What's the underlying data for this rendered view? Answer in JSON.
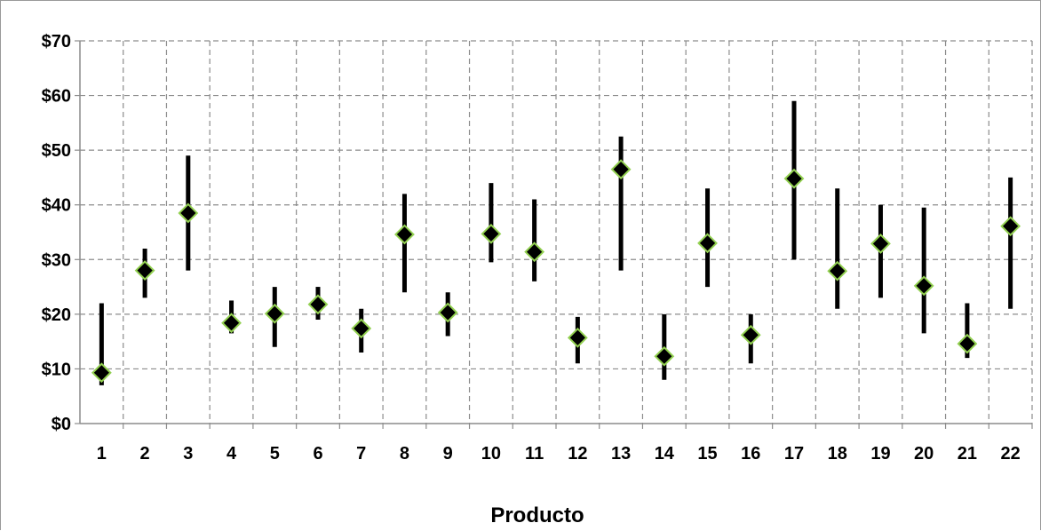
{
  "chart_data": {
    "type": "scatter",
    "title": "",
    "xlabel": "Producto",
    "ylabel": "",
    "ylim": [
      0,
      70
    ],
    "yticks": [
      0,
      10,
      20,
      30,
      40,
      50,
      60,
      70
    ],
    "ytick_labels": [
      "$0",
      "$10",
      "$20",
      "$30",
      "$40",
      "$50",
      "$60",
      "$70"
    ],
    "categories": [
      "1",
      "2",
      "3",
      "4",
      "5",
      "6",
      "7",
      "8",
      "9",
      "10",
      "11",
      "12",
      "13",
      "14",
      "15",
      "16",
      "17",
      "18",
      "19",
      "20",
      "21",
      "22"
    ],
    "grid": true,
    "legend": "none",
    "series": [
      {
        "kind": "range",
        "low": [
          7,
          23,
          28,
          16.5,
          14,
          19,
          13,
          24,
          16,
          29.5,
          26,
          11,
          28,
          8,
          25,
          11,
          30,
          21,
          23,
          16.5,
          12,
          21
        ],
        "high": [
          22,
          32,
          49,
          22.5,
          25,
          25,
          21,
          42,
          24,
          44,
          41,
          19.5,
          52.5,
          20,
          43,
          20,
          59,
          43,
          40,
          39.5,
          22,
          45
        ],
        "color": "#000000"
      },
      {
        "kind": "point",
        "values": [
          9.3,
          28,
          38.5,
          18.4,
          20.1,
          21.8,
          17.4,
          34.6,
          20.3,
          34.7,
          31.4,
          15.7,
          46.5,
          12.3,
          33,
          16.2,
          44.8,
          27.9,
          32.9,
          25.2,
          14.6,
          36.1
        ],
        "marker": "diamond",
        "fill_color": "#000000",
        "edge_color": "#92d050"
      }
    ],
    "colors": {
      "grid": "#8c8c8c",
      "frame": "#9a9a9a",
      "axis": "#8c8c8c"
    }
  }
}
